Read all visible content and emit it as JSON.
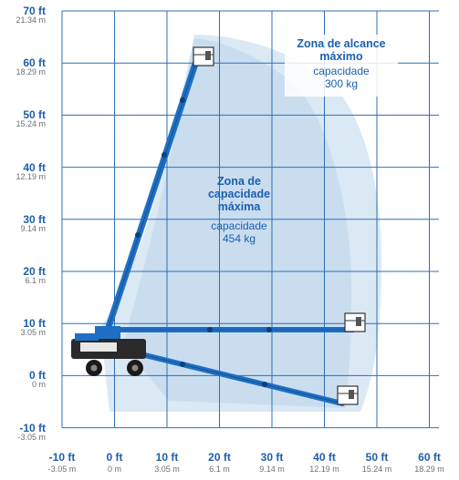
{
  "colors": {
    "grid": "#2f6fb5",
    "envelope_outer": "#dbe9f5",
    "envelope_inner": "#c6dcee",
    "boom": "#1f6fc4",
    "boom_dark": "#0d3f7a",
    "label_blue": "#1f5fa8",
    "label_gray": "#6a6f75"
  },
  "axes": {
    "y_ticks": [
      {
        "ft": "70 ft",
        "m": "21.34 m"
      },
      {
        "ft": "60 ft",
        "m": "18.29 m"
      },
      {
        "ft": "50 ft",
        "m": "15.24 m"
      },
      {
        "ft": "40 ft",
        "m": "12.19 m"
      },
      {
        "ft": "30 ft",
        "m": "9.14 m"
      },
      {
        "ft": "20 ft",
        "m": "6.1 m"
      },
      {
        "ft": "10 ft",
        "m": "3.05 m"
      },
      {
        "ft": "0 ft",
        "m": "0 m"
      },
      {
        "ft": "-10 ft",
        "m": "-3.05 m"
      }
    ],
    "x_ticks": [
      {
        "ft": "-10 ft",
        "m": "-3.05 m"
      },
      {
        "ft": "0 ft",
        "m": "0 m"
      },
      {
        "ft": "10 ft",
        "m": "3.05 m"
      },
      {
        "ft": "20 ft",
        "m": "6.1 m"
      },
      {
        "ft": "30 ft",
        "m": "9.14 m"
      },
      {
        "ft": "40 ft",
        "m": "12.19 m"
      },
      {
        "ft": "50 ft",
        "m": "15.24 m"
      },
      {
        "ft": "60 ft",
        "m": "18.29 m"
      }
    ]
  },
  "zones": {
    "max_capacity": {
      "title_line1": "Zona de",
      "title_line2": "capacidade",
      "title_line3": "máxima",
      "cap_label": "capacidade",
      "cap_value": "454 kg"
    },
    "max_reach": {
      "title_line1": "Zona de alcance",
      "title_line2": "máximo",
      "cap_label": "capacidade",
      "cap_value": "300 kg"
    }
  }
}
